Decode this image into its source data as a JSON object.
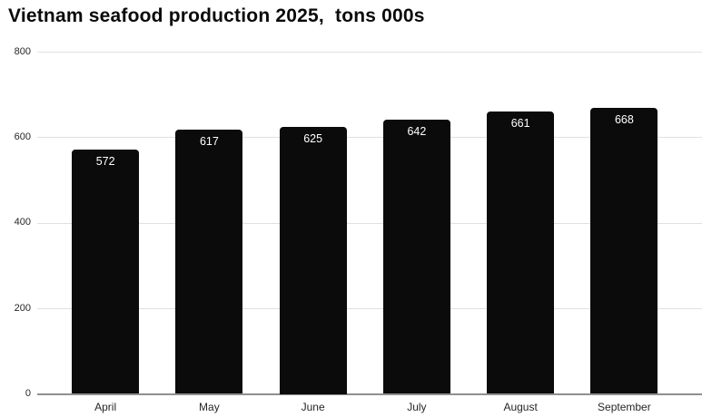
{
  "title": "Vietnam seafood production 2025,  tons 000s",
  "chart_data": {
    "type": "bar",
    "title": "Vietnam seafood production 2025,  tons 000s",
    "categories": [
      "April",
      "May",
      "June",
      "July",
      "August",
      "September"
    ],
    "values": [
      572,
      617,
      625,
      642,
      661,
      668
    ],
    "xlabel": "",
    "ylabel": "",
    "ylim": [
      0,
      800
    ],
    "yticks": [
      0,
      200,
      400,
      600,
      800
    ],
    "grid": true,
    "legend_position": "none",
    "bar_color": "#0b0b0b",
    "value_label_color": "#ffffff",
    "gridline_color": "#e0e0e0",
    "axis_line_color": "#8f8f8f",
    "tick_label_color": "#262626",
    "title_color": "#0a0a0a",
    "background_color": "#ffffff"
  }
}
